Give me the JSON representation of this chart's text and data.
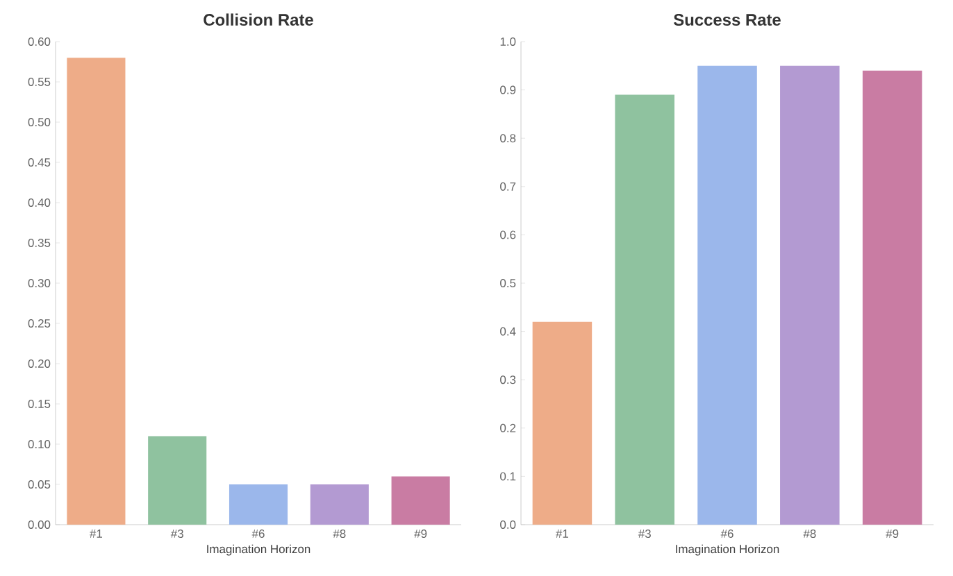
{
  "chart_data": [
    {
      "type": "bar",
      "title": "Collision Rate",
      "xlabel": "Imagination Horizon",
      "categories": [
        "#1",
        "#3",
        "#6",
        "#8",
        "#9"
      ],
      "values": [
        0.58,
        0.11,
        0.05,
        0.05,
        0.06
      ],
      "colors": [
        "#eeac88",
        "#8fc29f",
        "#9bb7eb",
        "#b39ad2",
        "#c97ca3"
      ],
      "ylim": [
        0,
        0.6
      ],
      "yticks": [
        {
          "value": 0,
          "label": "0.00"
        },
        {
          "value": 0.05,
          "label": "0.05"
        },
        {
          "value": 0.1,
          "label": "0.10"
        },
        {
          "value": 0.15,
          "label": "0.15"
        },
        {
          "value": 0.2,
          "label": "0.20"
        },
        {
          "value": 0.25,
          "label": "0.25"
        },
        {
          "value": 0.3,
          "label": "0.30"
        },
        {
          "value": 0.35,
          "label": "0.35"
        },
        {
          "value": 0.4,
          "label": "0.40"
        },
        {
          "value": 0.45,
          "label": "0.45"
        },
        {
          "value": 0.5,
          "label": "0.50"
        },
        {
          "value": 0.55,
          "label": "0.55"
        },
        {
          "value": 0.6,
          "label": "0.60"
        }
      ]
    },
    {
      "type": "bar",
      "title": "Success Rate",
      "xlabel": "Imagination Horizon",
      "categories": [
        "#1",
        "#3",
        "#6",
        "#8",
        "#9"
      ],
      "values": [
        0.42,
        0.89,
        0.95,
        0.95,
        0.94
      ],
      "colors": [
        "#eeac88",
        "#8fc29f",
        "#9bb7eb",
        "#b39ad2",
        "#c97ca3"
      ],
      "ylim": [
        0,
        1.0
      ],
      "yticks": [
        {
          "value": 0,
          "label": "0.0"
        },
        {
          "value": 0.1,
          "label": "0.1"
        },
        {
          "value": 0.2,
          "label": "0.2"
        },
        {
          "value": 0.3,
          "label": "0.3"
        },
        {
          "value": 0.4,
          "label": "0.4"
        },
        {
          "value": 0.5,
          "label": "0.5"
        },
        {
          "value": 0.6,
          "label": "0.6"
        },
        {
          "value": 0.7,
          "label": "0.7"
        },
        {
          "value": 0.8,
          "label": "0.8"
        },
        {
          "value": 0.9,
          "label": "0.9"
        },
        {
          "value": 1.0,
          "label": "1.0"
        }
      ]
    }
  ]
}
